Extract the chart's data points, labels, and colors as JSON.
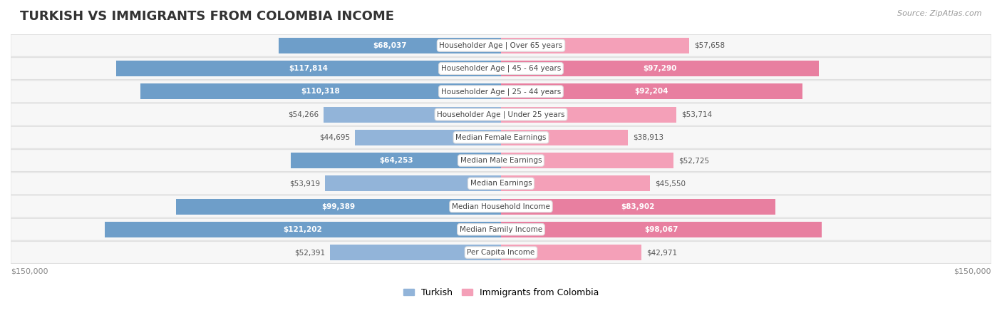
{
  "title": "TURKISH VS IMMIGRANTS FROM COLOMBIA INCOME",
  "source": "Source: ZipAtlas.com",
  "categories": [
    "Per Capita Income",
    "Median Family Income",
    "Median Household Income",
    "Median Earnings",
    "Median Male Earnings",
    "Median Female Earnings",
    "Householder Age | Under 25 years",
    "Householder Age | 25 - 44 years",
    "Householder Age | 45 - 64 years",
    "Householder Age | Over 65 years"
  ],
  "turkish_values": [
    52391,
    121202,
    99389,
    53919,
    64253,
    44695,
    54266,
    110318,
    117814,
    68037
  ],
  "colombia_values": [
    42971,
    98067,
    83902,
    45550,
    52725,
    38913,
    53714,
    92204,
    97290,
    57658
  ],
  "max_value": 150000,
  "turkish_color": "#92b4d9",
  "turkish_color_dark": "#6e9ec9",
  "colombia_color": "#f4a0b8",
  "colombia_color_dark": "#e87fa0",
  "bar_bg_color": "#f0f0f0",
  "row_bg_color": "#f7f7f7",
  "row_border_color": "#e0e0e0",
  "label_bg_color": "#ffffff",
  "label_border_color": "#e0e0e0",
  "text_color_dark": "#555555",
  "text_color_white": "#ffffff",
  "axis_label_color": "#888888",
  "title_color": "#333333",
  "source_color": "#999999"
}
